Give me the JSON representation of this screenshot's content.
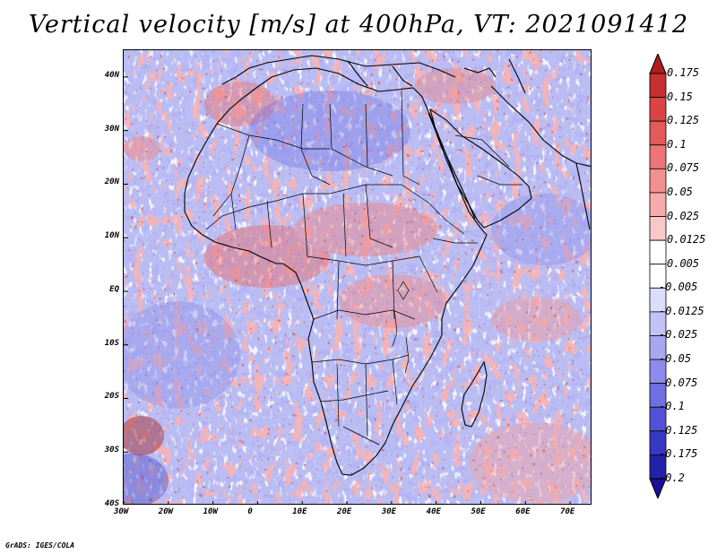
{
  "title": "Vertical velocity [m/s] at 400hPa, VT: 2021091412",
  "credit": "GrADS: IGES/COLA",
  "map": {
    "lon_range": [
      -30,
      75
    ],
    "lat_range": [
      -40,
      45
    ],
    "lat_labels": [
      "40N",
      "30N",
      "20N",
      "10N",
      "EQ",
      "10S",
      "20S",
      "30S",
      "40S"
    ],
    "lat_values": [
      40,
      30,
      20,
      10,
      0,
      -10,
      -20,
      -30,
      -40
    ],
    "lon_labels": [
      "30W",
      "20W",
      "10W",
      "0",
      "10E",
      "20E",
      "30E",
      "40E",
      "50E",
      "60E",
      "70E"
    ],
    "lon_values": [
      -30,
      -20,
      -10,
      0,
      10,
      20,
      30,
      40,
      50,
      60,
      70
    ]
  },
  "colorbar": {
    "labels": [
      "0.175",
      "0.15",
      "0.125",
      "0.1",
      "0.075",
      "0.05",
      "0.025",
      "0.0125",
      "0.005",
      "-0.005",
      "-0.0125",
      "-0.025",
      "-0.05",
      "-0.075",
      "-0.1",
      "-0.125",
      "-0.175",
      "-0.2"
    ],
    "colors": [
      "#b01c1c",
      "#c53030",
      "#d94545",
      "#e25a5a",
      "#ec7575",
      "#f29090",
      "#f7aaaa",
      "#fbc8c8",
      "#ffffff",
      "#ffffff",
      "#dcdcfb",
      "#c2c2f7",
      "#a8a8f2",
      "#8c8ced",
      "#6f6fe3",
      "#5252d6",
      "#3838c4",
      "#2222aa",
      "#1a0f96"
    ]
  }
}
